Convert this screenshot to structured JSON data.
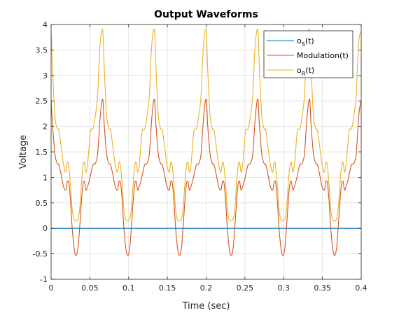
{
  "chart_data": {
    "type": "line",
    "title": "Output Waveforms",
    "xlabel": "Time (sec)",
    "ylabel": "Voltage",
    "xlim": [
      0,
      0.4
    ],
    "ylim": [
      -1,
      4
    ],
    "xticks": [
      0,
      0.05,
      0.1,
      0.15,
      0.2,
      0.25,
      0.3,
      0.35,
      0.4
    ],
    "xtick_labels": [
      "0",
      "0.05",
      "0.1",
      "0.15",
      "0.2",
      "0.25",
      "0.3",
      "0.35",
      "0.4"
    ],
    "yticks": [
      -1,
      -0.5,
      0,
      0.5,
      1,
      1.5,
      2,
      2.5,
      3,
      3.5,
      4
    ],
    "ytick_labels": [
      "-1",
      "-0.5",
      "0",
      "0.5",
      "1",
      "1.5",
      "2",
      "2.5",
      "3",
      "3.5",
      "4"
    ],
    "grid": true,
    "legend_location": "top-right",
    "period": 0.0667,
    "series": [
      {
        "key": "os",
        "legend_main": "o",
        "legend_sub": "S",
        "legend_suffix": "(t)",
        "color": "#0072BD",
        "x": [
          0,
          0.4
        ],
        "y": [
          0,
          0
        ]
      },
      {
        "key": "modulation",
        "legend_main": "Modulation(t)",
        "legend_sub": "",
        "legend_suffix": "",
        "color": "#D95319",
        "x": [
          0,
          0.002,
          0.005,
          0.008,
          0.01,
          0.013,
          0.016,
          0.019,
          0.021,
          0.023,
          0.025,
          0.027,
          0.029,
          0.031,
          0.033,
          0.035,
          0.037,
          0.039,
          0.041,
          0.043,
          0.045,
          0.047,
          0.049,
          0.051,
          0.054,
          0.057,
          0.06,
          0.062,
          0.064,
          0.0667
        ],
        "y": [
          2.53,
          2.0,
          1.45,
          1.27,
          1.25,
          1.05,
          0.82,
          0.75,
          0.92,
          0.88,
          0.55,
          0.05,
          -0.3,
          -0.5,
          -0.52,
          -0.35,
          0.05,
          0.5,
          0.85,
          0.92,
          0.75,
          0.82,
          0.92,
          1.05,
          1.25,
          1.27,
          1.45,
          1.9,
          2.3,
          2.53
        ]
      },
      {
        "key": "or",
        "legend_main": "o",
        "legend_sub": "R",
        "legend_suffix": "(t)",
        "color": "#EDB120",
        "x": [
          0,
          0.002,
          0.005,
          0.008,
          0.01,
          0.013,
          0.016,
          0.019,
          0.021,
          0.023,
          0.025,
          0.027,
          0.029,
          0.031,
          0.033,
          0.035,
          0.037,
          0.039,
          0.041,
          0.043,
          0.045,
          0.047,
          0.049,
          0.051,
          0.054,
          0.057,
          0.06,
          0.062,
          0.064,
          0.0667
        ],
        "y": [
          3.87,
          3.1,
          2.2,
          1.95,
          1.93,
          1.6,
          1.25,
          1.1,
          1.3,
          1.2,
          0.85,
          0.4,
          0.2,
          0.15,
          0.15,
          0.2,
          0.4,
          0.85,
          1.2,
          1.3,
          1.1,
          1.25,
          1.6,
          1.93,
          1.95,
          2.2,
          2.6,
          3.3,
          3.75,
          3.87
        ]
      }
    ]
  }
}
